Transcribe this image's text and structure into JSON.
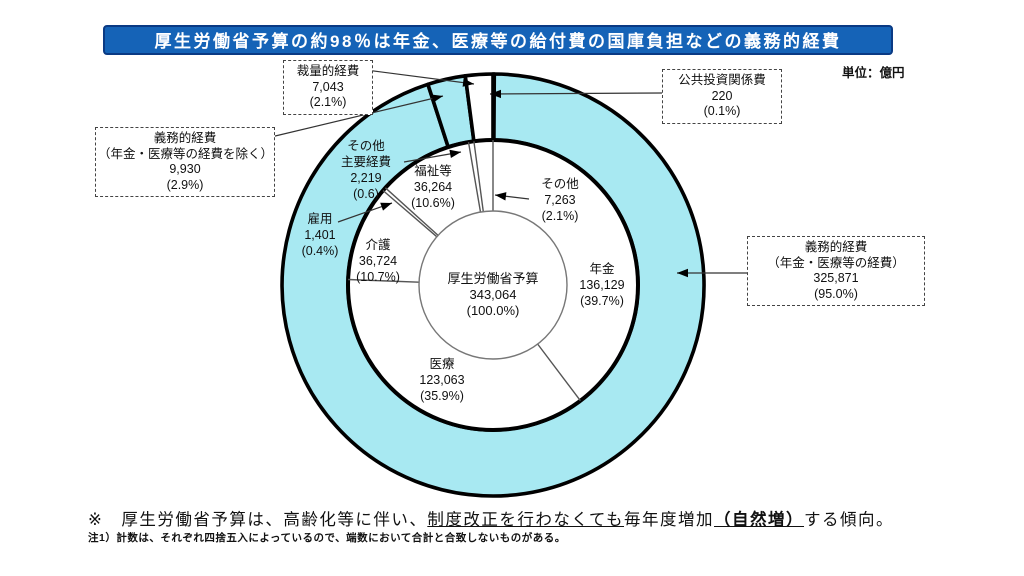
{
  "banner": {
    "text": "厚生労働省予算の約98％は年金、医療等の給付費の国庫負担などの義務的経費"
  },
  "unit_label": "単位：億円",
  "chart_data": {
    "type": "donut",
    "title": "厚生労働省予算の約98％は年金、医療等の給付費の国庫負担などの義務的経費",
    "unit": "億円",
    "legend_position": "callout-boxes",
    "total": {
      "label": "厚生労働省予算",
      "value": "343,064",
      "pct_label": "(100.0%)",
      "value_num": 343064
    },
    "outer_ring": [
      {
        "label": "公共投資関係費",
        "value": "220",
        "pct_label": "(0.1%)",
        "pct": 0.1,
        "color": "#ffffff"
      },
      {
        "label": "義務的経費",
        "sublabel": "（年金・医療等の経費）",
        "value": "325,871",
        "pct_label": "(95.0%)",
        "pct": 95.0,
        "color": "#a8e9f2"
      },
      {
        "label": "義務的経費",
        "sublabel": "（年金・医療等の経費を除く）",
        "value": "9,930",
        "pct_label": "(2.9%)",
        "pct": 2.9,
        "color": "#a8e9f2"
      },
      {
        "label": "裁量的経費",
        "value": "7,043",
        "pct_label": "(2.1%)",
        "pct": 2.1,
        "color": "#ffffff"
      }
    ],
    "inner_ring": [
      {
        "label": "年金",
        "value": "136,129",
        "pct_label": "(39.7%)",
        "pct": 39.7
      },
      {
        "label": "医療",
        "value": "123,063",
        "pct_label": "(35.9%)",
        "pct": 35.9
      },
      {
        "label": "介護",
        "value": "36,724",
        "pct_label": "(10.7%)",
        "pct": 10.7
      },
      {
        "label": "雇用",
        "value": "1,401",
        "pct_label": "(0.4%)",
        "pct": 0.4
      },
      {
        "label": "福祉等",
        "value": "36,264",
        "pct_label": "(10.6%)",
        "pct": 10.6
      },
      {
        "label": "その他主要経費",
        "label_l1": "その他",
        "label_l2": "主要経費",
        "value": "2,219",
        "pct_label": "(0.6)",
        "pct": 0.6
      },
      {
        "label": "その他",
        "value": "7,263",
        "pct_label": "(2.1%)",
        "pct": 2.1
      }
    ],
    "colors": {
      "mandatory_fill": "#a8e9f2",
      "discretionary_fill": "#ffffff",
      "outline": "#000000",
      "banner_bg": "#1563b7",
      "banner_border": "#0a3a84"
    }
  },
  "footnote": {
    "symbol": "※",
    "part1": "厚生労働省予算は、高齢化等に伴い、",
    "underlined": "制度改正を行わなくても",
    "part2": "毎年度増加",
    "underlined_bold": "（自然増）",
    "part3": "する傾向。",
    "sub_note": "注1）計数は、それぞれ四捨五入によっているので、端数において合計と合致しないものがある。"
  }
}
